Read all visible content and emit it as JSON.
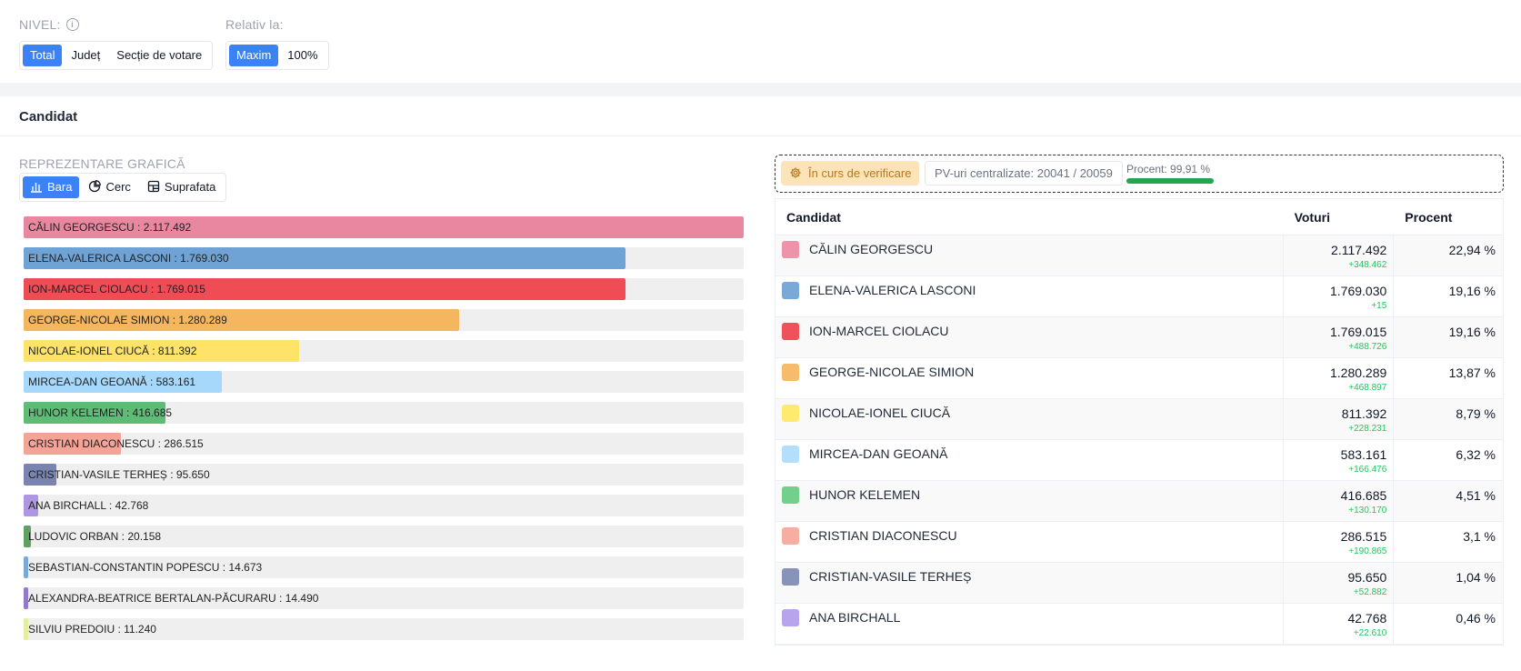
{
  "filters": {
    "nivel_label": "NIVEL:",
    "nivel_options": [
      "Total",
      "Județ",
      "Secție de votare"
    ],
    "nivel_selected": "Total",
    "relativ_label": "Relativ la:",
    "relativ_options": [
      "Maxim",
      "100%"
    ],
    "relativ_selected": "Maxim"
  },
  "card": {
    "title": "Candidat",
    "chart_section_label": "REPREZENTARE GRAFICĂ",
    "chart_types": [
      "Bara",
      "Cerc",
      "Suprafata"
    ],
    "chart_type_selected": "Bara"
  },
  "status": {
    "verification": "În curs de verificare",
    "pv_text": "PV-uri centralizate: 20041 / 20059",
    "percent_text": "Procent: 99,91 %",
    "percent_value": 99.91
  },
  "table": {
    "headers": [
      "Candidat",
      "Voturi",
      "Procent"
    ]
  },
  "colors": {
    "accent": "#3b82f6",
    "delta": "#22c55e",
    "progress": "#22a652"
  },
  "chart_data": {
    "type": "bar",
    "scale": "Maxim",
    "categories": [
      "CĂLIN GEORGESCU",
      "ELENA-VALERICA LASCONI",
      "ION-MARCEL CIOLACU",
      "GEORGE-NICOLAE SIMION",
      "NICOLAE-IONEL CIUCĂ",
      "MIRCEA-DAN GEOANĂ",
      "HUNOR KELEMEN",
      "CRISTIAN DIACONESCU",
      "CRISTIAN-VASILE TERHEȘ",
      "ANA BIRCHALL",
      "LUDOVIC ORBAN",
      "SEBASTIAN-CONSTANTIN POPESCU",
      "ALEXANDRA-BEATRICE BERTALAN-PĂCURARU",
      "SILVIU PREDOIU"
    ],
    "values": [
      2117492,
      1769030,
      1769015,
      1280289,
      811392,
      583161,
      416685,
      286515,
      95650,
      42768,
      20158,
      14673,
      14490,
      11240
    ],
    "labels": [
      "CĂLIN GEORGESCU : 2.117.492",
      "ELENA-VALERICA LASCONI : 1.769.030",
      "ION-MARCEL CIOLACU : 1.769.015",
      "GEORGE-NICOLAE SIMION : 1.280.289",
      "NICOLAE-IONEL CIUCĂ : 811.392",
      "MIRCEA-DAN GEOANĂ : 583.161",
      "HUNOR KELEMEN : 416.685",
      "CRISTIAN DIACONESCU : 286.515",
      "CRISTIAN-VASILE TERHEȘ : 95.650",
      "ANA BIRCHALL : 42.768",
      "LUDOVIC ORBAN : 20.158",
      "SEBASTIAN-CONSTANTIN POPESCU : 14.673",
      "ALEXANDRA-BEATRICE BERTALAN-PĂCURARU : 14.490",
      "SILVIU PREDOIU : 11.240"
    ],
    "colors": [
      "#e8879f",
      "#6fa3d5",
      "#ef4c56",
      "#f4b75f",
      "#fde468",
      "#a6d8fb",
      "#5fbc77",
      "#f5a397",
      "#7985b0",
      "#ad97e3",
      "#5fa163",
      "#7aa8d6",
      "#9379c9",
      "#e5eea0"
    ]
  },
  "table_rows": [
    {
      "name": "CĂLIN GEORGESCU",
      "color": "#ed94aa",
      "votes": "2.117.492",
      "delta": "+348.462",
      "percent": "22,94 %"
    },
    {
      "name": "ELENA-VALERICA LASCONI",
      "color": "#7aa9d8",
      "votes": "1.769.030",
      "delta": "+15",
      "percent": "19,16 %"
    },
    {
      "name": "ION-MARCEL CIOLACU",
      "color": "#f0525c",
      "votes": "1.769.015",
      "delta": "+488.726",
      "percent": "19,16 %"
    },
    {
      "name": "GEORGE-NICOLAE SIMION",
      "color": "#f5bd6b",
      "votes": "1.280.289",
      "delta": "+468.897",
      "percent": "13,87 %"
    },
    {
      "name": "NICOLAE-IONEL CIUCĂ",
      "color": "#fdea6f",
      "votes": "811.392",
      "delta": "+228.231",
      "percent": "8,79 %"
    },
    {
      "name": "MIRCEA-DAN GEOANĂ",
      "color": "#b4dffb",
      "votes": "583.161",
      "delta": "+166.476",
      "percent": "6,32 %"
    },
    {
      "name": "HUNOR KELEMEN",
      "color": "#72cf8c",
      "votes": "416.685",
      "delta": "+130.170",
      "percent": "4,51 %"
    },
    {
      "name": "CRISTIAN DIACONESCU",
      "color": "#f7aea2",
      "votes": "286.515",
      "delta": "+190.865",
      "percent": "3,1 %"
    },
    {
      "name": "CRISTIAN-VASILE TERHEȘ",
      "color": "#8893ba",
      "votes": "95.650",
      "delta": "+52.882",
      "percent": "1,04 %"
    },
    {
      "name": "ANA BIRCHALL",
      "color": "#b7a4ec",
      "votes": "42.768",
      "delta": "+22.610",
      "percent": "0,46 %"
    }
  ]
}
